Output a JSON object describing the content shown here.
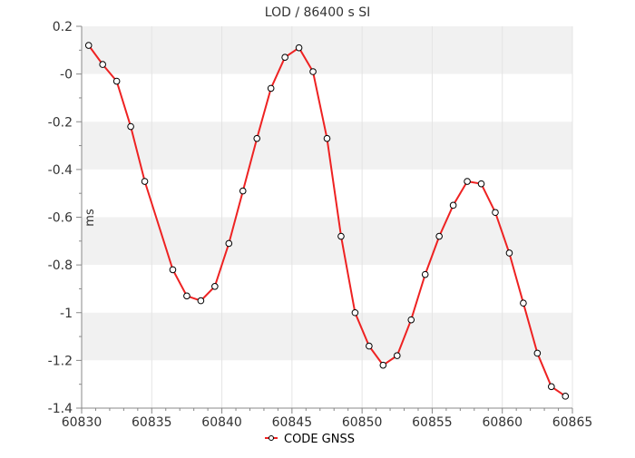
{
  "chart_data": {
    "type": "line",
    "title": "LOD / 86400 s SI",
    "xlabel": "",
    "ylabel": "ms",
    "xlim": [
      60830,
      60865
    ],
    "ylim": [
      -1.4,
      0.2
    ],
    "x_ticks": [
      60830,
      60835,
      60840,
      60845,
      60850,
      60855,
      60860,
      60865
    ],
    "x_tick_labels": [
      "60830",
      "60835",
      "60840",
      "60845",
      "60850",
      "60855",
      "60860",
      "60865"
    ],
    "y_ticks": [
      0.2,
      0,
      -0.2,
      -0.4,
      -0.6,
      -0.8,
      -1,
      -1.2,
      -1.4
    ],
    "y_tick_labels": [
      "0.2",
      "-0",
      "-0.2",
      "-0.4",
      "-0.6",
      "-0.8",
      "-1",
      "-1.2",
      "-1.4"
    ],
    "grid": true,
    "legend_position": "bottom-center",
    "series_color": "#ee2222",
    "series": [
      {
        "name": "CODE GNSS",
        "x": [
          60830.5,
          60831.5,
          60832.5,
          60833.5,
          60834.5,
          60836.5,
          60837.5,
          60838.5,
          60839.5,
          60840.5,
          60841.5,
          60842.5,
          60843.5,
          60844.5,
          60845.5,
          60846.5,
          60847.5,
          60848.5,
          60849.5,
          60850.5,
          60851.5,
          60852.5,
          60853.5,
          60854.5,
          60855.5,
          60856.5,
          60857.5,
          60858.5,
          60859.5,
          60860.5,
          60861.5,
          60862.5,
          60863.5,
          60864.5
        ],
        "y": [
          0.12,
          0.04,
          -0.03,
          -0.22,
          -0.45,
          -0.82,
          -0.93,
          -0.95,
          -0.89,
          -0.71,
          -0.49,
          -0.27,
          -0.06,
          0.07,
          0.11,
          0.01,
          -0.27,
          -0.68,
          -1.0,
          -1.14,
          -1.22,
          -1.18,
          -1.03,
          -0.84,
          -0.68,
          -0.55,
          -0.45,
          -0.46,
          -0.58,
          -0.75,
          -0.96,
          -1.17,
          -1.31,
          -1.35
        ]
      }
    ]
  }
}
